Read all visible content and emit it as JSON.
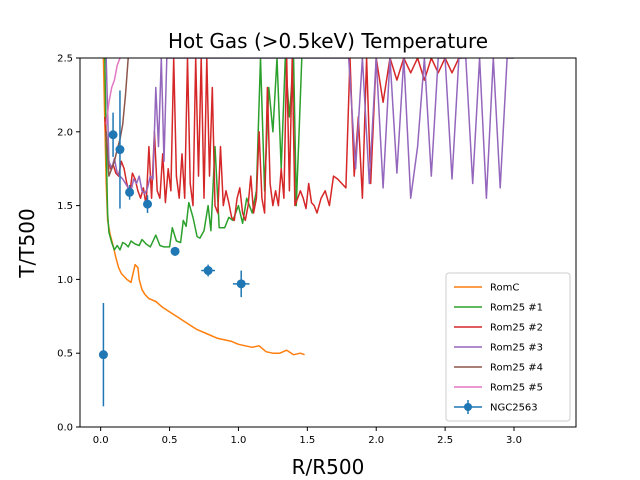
{
  "chart_data": {
    "type": "line",
    "title": "Hot Gas (>0.5keV) Temperature",
    "xlabel": "R/R500",
    "ylabel": "T/T500",
    "xlim": [
      -0.15,
      3.45
    ],
    "ylim": [
      0.0,
      2.5
    ],
    "grid": false,
    "legend_position": "lower-right",
    "xticks": [
      0.0,
      0.5,
      1.0,
      1.5,
      2.0,
      2.5,
      3.0
    ],
    "xtick_labels": [
      "0.0",
      "0.5",
      "1.0",
      "1.5",
      "2.0",
      "2.5",
      "3.0"
    ],
    "yticks": [
      0.0,
      0.5,
      1.0,
      1.5,
      2.0,
      2.5
    ],
    "ytick_labels": [
      "0.0",
      "0.5",
      "1.0",
      "1.5",
      "2.0",
      "2.5"
    ],
    "series": [
      {
        "name": "RomC",
        "color": "#ff7f0e",
        "x": [
          0.02,
          0.04,
          0.05,
          0.07,
          0.09,
          0.11,
          0.13,
          0.15,
          0.17,
          0.19,
          0.22,
          0.25,
          0.27,
          0.28,
          0.3,
          0.32,
          0.35,
          0.4,
          0.45,
          0.5,
          0.55,
          0.6,
          0.65,
          0.7,
          0.75,
          0.8,
          0.85,
          0.9,
          0.95,
          1.0,
          1.05,
          1.1,
          1.15,
          1.2,
          1.25,
          1.3,
          1.35,
          1.4,
          1.45,
          1.48
        ],
        "y": [
          2.5,
          1.65,
          1.4,
          1.3,
          1.23,
          1.15,
          1.08,
          1.04,
          1.02,
          1.0,
          0.98,
          1.1,
          1.08,
          1.0,
          0.93,
          0.9,
          0.87,
          0.85,
          0.81,
          0.78,
          0.75,
          0.72,
          0.69,
          0.66,
          0.64,
          0.62,
          0.6,
          0.59,
          0.58,
          0.56,
          0.55,
          0.54,
          0.55,
          0.51,
          0.5,
          0.5,
          0.52,
          0.49,
          0.5,
          0.49
        ]
      },
      {
        "name": "Rom25 #1",
        "color": "#2ca02c",
        "x": [
          0.03,
          0.04,
          0.05,
          0.06,
          0.08,
          0.1,
          0.12,
          0.14,
          0.16,
          0.18,
          0.2,
          0.22,
          0.25,
          0.28,
          0.3,
          0.33,
          0.36,
          0.4,
          0.43,
          0.46,
          0.5,
          0.52,
          0.55,
          0.58,
          0.6,
          0.62,
          0.64,
          0.67,
          0.7,
          0.72,
          0.75,
          0.78,
          0.8,
          0.83,
          0.86,
          0.9,
          0.93,
          0.96,
          1.0,
          1.03,
          1.06,
          1.1,
          1.13,
          1.16,
          1.19,
          1.22,
          1.25,
          1.28,
          1.31,
          1.34,
          1.37,
          1.4,
          1.42,
          1.44,
          1.46
        ],
        "y": [
          2.5,
          1.9,
          1.45,
          1.32,
          1.25,
          1.2,
          1.23,
          1.2,
          1.25,
          1.24,
          1.22,
          1.26,
          1.24,
          1.23,
          1.27,
          1.24,
          1.22,
          1.3,
          1.23,
          1.22,
          1.22,
          1.35,
          1.26,
          1.25,
          1.4,
          1.36,
          1.52,
          1.42,
          1.29,
          1.28,
          1.33,
          1.5,
          1.33,
          1.9,
          1.35,
          1.35,
          1.42,
          1.4,
          1.5,
          1.38,
          1.55,
          1.45,
          1.6,
          2.5,
          1.6,
          2.3,
          2.0,
          2.5,
          1.75,
          2.5,
          2.1,
          2.5,
          1.5,
          2.0,
          2.5
        ]
      },
      {
        "name": "Rom25 #2",
        "color": "#d62728",
        "x": [
          0.03,
          0.05,
          0.07,
          0.09,
          0.11,
          0.13,
          0.15,
          0.17,
          0.19,
          0.21,
          0.23,
          0.25,
          0.27,
          0.29,
          0.31,
          0.33,
          0.35,
          0.37,
          0.39,
          0.41,
          0.43,
          0.45,
          0.47,
          0.49,
          0.51,
          0.53,
          0.55,
          0.57,
          0.59,
          0.61,
          0.63,
          0.65,
          0.67,
          0.69,
          0.71,
          0.73,
          0.75,
          0.77,
          0.79,
          0.81,
          0.83,
          0.85,
          0.87,
          0.89,
          0.91,
          0.93,
          0.95,
          0.97,
          0.99,
          1.01,
          1.03,
          1.05,
          1.07,
          1.09,
          1.11,
          1.13,
          1.15,
          1.17,
          1.19,
          1.21,
          1.23,
          1.25,
          1.27,
          1.29,
          1.31,
          1.33,
          1.35,
          1.37,
          1.39,
          1.41,
          1.43,
          1.45,
          1.47,
          1.49,
          1.51,
          1.53,
          1.55,
          1.57,
          1.6,
          1.63,
          1.66,
          1.69,
          1.72,
          1.75,
          1.78,
          1.81,
          1.84,
          1.87,
          1.9,
          1.93,
          1.96,
          2.0,
          2.05,
          2.1,
          2.15,
          2.2,
          2.25,
          2.3,
          2.35,
          2.4,
          2.45,
          2.5,
          2.55,
          2.6,
          2.62
        ],
        "y": [
          2.1,
          1.85,
          1.75,
          1.78,
          1.72,
          1.7,
          1.8,
          1.75,
          1.65,
          1.58,
          1.72,
          1.68,
          1.6,
          1.55,
          1.62,
          1.5,
          1.9,
          1.55,
          2.0,
          1.6,
          1.55,
          1.85,
          1.52,
          1.75,
          1.6,
          2.5,
          1.7,
          1.55,
          1.85,
          1.55,
          2.5,
          1.65,
          1.5,
          2.5,
          1.7,
          2.5,
          1.55,
          2.5,
          1.7,
          2.3,
          1.5,
          1.45,
          1.9,
          1.5,
          1.6,
          1.52,
          1.42,
          1.4,
          1.55,
          1.62,
          1.45,
          1.4,
          1.5,
          1.7,
          1.45,
          1.55,
          2.0,
          1.55,
          1.45,
          2.3,
          1.65,
          1.5,
          1.6,
          1.5,
          1.75,
          1.55,
          2.5,
          1.6,
          2.5,
          1.5,
          1.55,
          1.6,
          1.55,
          1.48,
          1.65,
          1.52,
          1.5,
          1.45,
          1.55,
          1.6,
          1.5,
          1.7,
          1.68,
          1.65,
          1.62,
          2.5,
          1.7,
          2.1,
          1.55,
          2.5,
          1.65,
          2.5,
          2.2,
          2.5,
          2.35,
          2.5,
          2.4,
          2.5,
          2.35,
          2.5,
          2.4,
          2.5,
          2.4,
          2.5,
          2.5
        ]
      },
      {
        "name": "Rom25 #3",
        "color": "#9467bd",
        "x": [
          0.04,
          0.06,
          0.08,
          0.1,
          0.12,
          0.14,
          0.16,
          0.18,
          0.2,
          0.22,
          0.24,
          0.26,
          0.28,
          0.3,
          0.32,
          0.34,
          0.36,
          0.38,
          0.4,
          0.42,
          0.44,
          0.46,
          0.48,
          0.5,
          0.55,
          0.6,
          0.65,
          0.7,
          0.75,
          0.8,
          0.85,
          0.9,
          0.95,
          1.0,
          1.05,
          1.1,
          1.15,
          1.2,
          1.25,
          1.3,
          1.35,
          1.4,
          1.45,
          1.5,
          1.55,
          1.6,
          1.65,
          1.7,
          1.75,
          1.8,
          1.85,
          1.9,
          1.95,
          2.0,
          2.05,
          2.1,
          2.15,
          2.2,
          2.25,
          2.3,
          2.35,
          2.4,
          2.45,
          2.5,
          2.55,
          2.6,
          2.65,
          2.7,
          2.75,
          2.8,
          2.85,
          2.9,
          2.95,
          3.0
        ],
        "y": [
          2.5,
          1.8,
          1.75,
          1.82,
          1.72,
          1.7,
          1.68,
          1.65,
          1.62,
          1.6,
          1.68,
          1.65,
          1.7,
          1.6,
          1.58,
          1.62,
          1.7,
          1.68,
          2.3,
          1.9,
          2.5,
          1.8,
          2.5,
          2.5,
          2.5,
          2.5,
          2.5,
          2.5,
          2.5,
          2.5,
          2.5,
          2.5,
          2.5,
          2.5,
          2.5,
          2.5,
          2.5,
          2.5,
          2.5,
          2.5,
          2.5,
          2.5,
          2.5,
          2.5,
          2.5,
          2.5,
          2.5,
          2.5,
          2.5,
          2.5,
          1.75,
          2.5,
          1.65,
          2.5,
          1.62,
          2.5,
          1.72,
          2.5,
          1.55,
          1.9,
          2.5,
          1.7,
          2.5,
          2.5,
          1.68,
          2.5,
          2.5,
          1.65,
          2.5,
          1.55,
          2.5,
          1.62,
          2.5,
          2.5
        ]
      },
      {
        "name": "Rom25 #4",
        "color": "#8c564b",
        "x": [
          0.04,
          0.06,
          0.08,
          0.1,
          0.12,
          0.14,
          0.16,
          0.18,
          0.2
        ],
        "y": [
          2.0,
          1.7,
          1.75,
          1.8,
          1.88,
          1.95,
          2.05,
          2.25,
          2.5
        ]
      },
      {
        "name": "Rom25 #5",
        "color": "#e377c2",
        "x": [
          0.04,
          0.06,
          0.08,
          0.1,
          0.12,
          0.14
        ],
        "y": [
          2.05,
          2.2,
          2.3,
          2.35,
          2.45,
          2.5
        ]
      }
    ],
    "errorbar_series": {
      "name": "NGC2563",
      "color": "#1f77b4",
      "points": [
        {
          "x": 0.02,
          "y": 0.49,
          "xerr": 0.0,
          "yerr": 0.35
        },
        {
          "x": 0.09,
          "y": 1.98,
          "xerr": 0.01,
          "yerr": 0.15
        },
        {
          "x": 0.14,
          "y": 1.88,
          "xerr": 0.01,
          "yerr": 0.4
        },
        {
          "x": 0.21,
          "y": 1.59,
          "xerr": 0.02,
          "yerr": 0.05
        },
        {
          "x": 0.34,
          "y": 1.51,
          "xerr": 0.02,
          "yerr": 0.06
        },
        {
          "x": 0.54,
          "y": 1.19,
          "xerr": 0.03,
          "yerr": 0.03
        },
        {
          "x": 0.78,
          "y": 1.06,
          "xerr": 0.05,
          "yerr": 0.04
        },
        {
          "x": 1.02,
          "y": 0.97,
          "xerr": 0.06,
          "yerr": 0.09
        }
      ]
    }
  }
}
